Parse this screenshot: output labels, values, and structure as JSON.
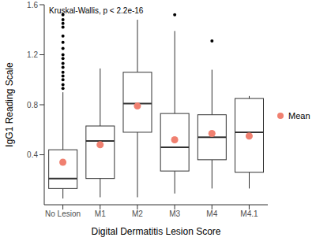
{
  "chart_data": {
    "type": "box",
    "annotation": "Kruskal-Wallis, p < 2.2e-16",
    "x_label": "Digital Dermatitis Lesion Score",
    "y_label": "IgG1 Reading Scale",
    "categories": [
      "No Lesion",
      "M1",
      "M2",
      "M3",
      "M4",
      "M4.1"
    ],
    "whisker_low": [
      0.05,
      0.06,
      0.06,
      0.09,
      0.13,
      0.13
    ],
    "q1": [
      0.13,
      0.21,
      0.58,
      0.27,
      0.36,
      0.26
    ],
    "median": [
      0.21,
      0.51,
      0.81,
      0.46,
      0.54,
      0.58
    ],
    "q3": [
      0.44,
      0.63,
      1.06,
      0.73,
      0.72,
      0.85
    ],
    "whisker_high": [
      0.9,
      1.09,
      1.48,
      1.39,
      1.08,
      0.87
    ],
    "outliers": [
      [
        0.93,
        0.96,
        1.0,
        1.03,
        1.06,
        1.1,
        1.13,
        1.17,
        1.2,
        1.25,
        1.3,
        1.35,
        1.42,
        1.45,
        1.48,
        1.52
      ],
      [],
      [],
      [
        1.52
      ],
      [
        1.31
      ],
      []
    ],
    "series": [
      {
        "name": "Mean",
        "color": "#f08070",
        "marker": "circle",
        "values": [
          0.34,
          0.48,
          0.79,
          0.52,
          0.57,
          0.55
        ]
      }
    ],
    "ylim": [
      0,
      1.6
    ],
    "yticks": [
      0.4,
      0.8,
      1.2,
      1.6
    ],
    "legend": "right",
    "grid": false
  }
}
